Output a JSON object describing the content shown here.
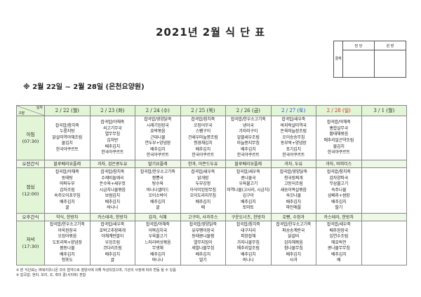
{
  "title": "2021년 2월 식 단 표",
  "approval": {
    "label": "결재",
    "columns": [
      "담 당",
      "원 장"
    ]
  },
  "subtitle": "※ 2월 22일 ~ 2월 28일 (은천요양원)",
  "corner": {
    "top": "일자",
    "bottom": "구분"
  },
  "days": [
    {
      "label": "2 / 22 (월)",
      "type": "weekday"
    },
    {
      "label": "2 / 23 (화)",
      "type": "weekday"
    },
    {
      "label": "2 / 24 (수)",
      "type": "weekday"
    },
    {
      "label": "2 / 25 (목)",
      "type": "weekday"
    },
    {
      "label": "2 / 26 (금)",
      "type": "weekday"
    },
    {
      "label": "2 / 27 (토)",
      "type": "sat"
    },
    {
      "label": "2 / 28 (일)",
      "type": "sun"
    },
    {
      "label": "3 / 1 (월)",
      "type": "weekday"
    }
  ],
  "colors": {
    "header_bg": "#e3f5d7",
    "saturday": "#1a3fd0",
    "sunday": "#d0201a"
  },
  "rows": [
    {
      "label": "아침\n(07:30)",
      "kind": "meal",
      "cells": [
        [
          "잡곡밥/참치죽",
          "누룽지탕",
          "닭살미역야채조림",
          "물김치",
          "한국야쿠르트"
        ],
        [
          "잡곡밥/야채죽",
          "쇠고기무국",
          "열무무침",
          "김자반",
          "배추김치",
          "한국야쿠르트"
        ],
        [
          "잡곡밥/영양닭죽",
          "시래기된장국",
          "호박볶음",
          "근대나물",
          "연두부+양념장",
          "배추김치",
          "한국야쿠르트"
        ],
        [
          "잡곡밥/참치죽",
          "오징어무국",
          "스팸구이",
          "건새우마늘쫑조림",
          "청경채김치",
          "배추김치",
          "한국야쿠르트"
        ],
        [
          "잡곡밥/한우소고기죽",
          "냉이국",
          "가자미구이",
          "알뜰새우조림",
          "마늘쫑지무침",
          "배추김치",
          "한국야쿠르트"
        ],
        [
          "잡곡밥/새우죽",
          "바지락살미역국",
          "돈육마늘장조림",
          "오이송송무침",
          "동부묵+양념장",
          "포기김치",
          "한국야쿠르트"
        ],
        [
          "잡곡밥/야채죽",
          "홍합살무국",
          "황태채볶음",
          "메추리알곤약조림",
          "물김치",
          "한국야쿠르트"
        ],
        []
      ]
    },
    {
      "label": "오전간식",
      "kind": "snack",
      "cells": [
        "블루베리요플레",
        "과자, 검은콩두유",
        "딸기요플레",
        "한과, 아몬드두유",
        "블루베리요플레",
        "과자, 두유",
        "과자, 비피더스",
        ""
      ]
    },
    {
      "label": "점심\n(12:00)",
      "kind": "meal",
      "cells": [
        [
          "잡곡밥/야채죽",
          "동태탕",
          "마파두부",
          "감자조림",
          "숙주오이초무침",
          "배추김치",
          "귤"
        ],
        [
          "잡곡밥/참치죽",
          "수제비들깨국",
          "돈수육+새우젓",
          "시금치나물볶음",
          "보쌈김치",
          "배추김치",
          "바나나"
        ],
        [
          "잡곡밥/한우소고기죽",
          "짬뽕국",
          "탕수육",
          "바나나샐러드",
          "오이소박이",
          "배추김치",
          "귤"
        ],
        [
          "잡곡밥/새우죽",
          "닭개장",
          "두부강정",
          "아삭이된장무침",
          "오이도라지무침",
          "배추김치",
          "배"
        ],
        [
          "잡곡밥/새우죽",
          "콩나물국",
          "우육불고기",
          "미역나물(고사리, 시금치)",
          "김구이",
          "배추김치",
          "토마토"
        ],
        [
          "잡곡밥/영양닭죽",
          "청국장찌개",
          "고등어조림",
          "새송이목살볶음",
          "숙갓나물",
          "배추김치",
          "파인애플"
        ],
        [
          "잡곡밥/참치죽",
          "감자양파국",
          "무삼불고기",
          "숙주나물",
          "삼배추+쌈장",
          "배추김치",
          "딸기"
        ],
        []
      ]
    },
    {
      "label": "오후간식",
      "kind": "snack",
      "cells": [
        "약식, 한방차",
        "카스테라, 한방차",
        "감자, 식혜",
        "고구마, 사과주스",
        "구운도너츠, 한방차",
        "호빵, 수정과",
        "카스테라, 한방차",
        ""
      ]
    },
    {
      "label": "저녁\n(17:30)",
      "kind": "meal",
      "cells": [
        [
          "잡곡밥/한우소고기죽",
          "아욱된장국",
          "오징어볶음",
          "도토리묵+양념장",
          "봄동나물",
          "배추김치",
          "청포도"
        ],
        [
          "잡곡밥/새우죽",
          "호박고추장찌개",
          "야채계란말이",
          "우엉조림",
          "코다리조림",
          "배추김치",
          "귤"
        ],
        [
          "잡곡밥/야채죽",
          "어묵김치국",
          "우육불고기",
          "느타리버섯볶음",
          "무생채",
          "배추김치",
          "바나나"
        ],
        [
          "잡곡밥/영양닭죽",
          "유부팽이장국",
          "동태콩나물찜",
          "열무지짐이",
          "세발나물무침",
          "배추김치",
          "딸기"
        ],
        [
          "잡곡밥/참치죽",
          "대구지리",
          "피망잡채",
          "가지나물무침",
          "메추리알조림",
          "배추김치",
          "바나나"
        ],
        [
          "잡곡밥/한우소고기죽",
          "파송송계란국",
          "닭갈비",
          "감자채볶음",
          "참나물무침",
          "배추김치",
          "사과"
        ],
        [
          "잡곡밥/새우죽",
          "배추된장국",
          "임연수조림",
          "애호박전",
          "콩나물무무침",
          "배추김치",
          "배"
        ],
        []
      ]
    }
  ],
  "notes": [
    "※ 본 식단표는 ㈜복지유니온 과의 협약으로 영양사에 의해 작성되었으며, 기관의 사정에 따라 변동 될 수 있음",
    "※ 잡곡밥: 현미, 보리, 조, 흑미 콩(서리태) 혼합"
  ]
}
